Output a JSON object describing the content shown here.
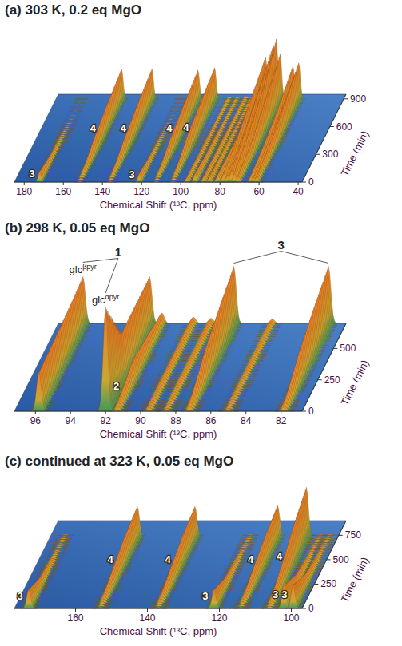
{
  "chart_data": [
    {
      "type": "waterfall",
      "title": "(a) 303 K, 0.2 eq MgO",
      "x_label": "Chemical Shift (¹³C, ppm)",
      "y_label": "Time (min)",
      "xlim": [
        185,
        38
      ],
      "xticks": [
        180,
        160,
        140,
        120,
        100,
        80,
        60,
        40
      ],
      "ylim": [
        0,
        950
      ],
      "yticks": [
        0,
        300,
        600,
        900
      ],
      "zlim": [
        0,
        100
      ],
      "times": [
        0,
        300,
        600,
        900
      ],
      "series": [
        {
          "name": "3",
          "x": 172,
          "values": [
            18,
            6,
            2,
            0
          ]
        },
        {
          "name": "4",
          "x": 151.5,
          "values": [
            2,
            25,
            40,
            50
          ]
        },
        {
          "name": "4",
          "x": 136,
          "values": [
            2,
            25,
            40,
            50
          ]
        },
        {
          "name": "3",
          "x": 121,
          "values": [
            15,
            5,
            2,
            0
          ]
        },
        {
          "name": "4",
          "x": 112.5,
          "values": [
            2,
            25,
            38,
            48
          ]
        },
        {
          "name": "4",
          "x": 104,
          "values": [
            2,
            28,
            42,
            52
          ]
        },
        {
          "x": 96.5,
          "values": [
            8,
            6,
            5,
            4
          ]
        },
        {
          "x": 92.5,
          "values": [
            15,
            8,
            5,
            3
          ]
        },
        {
          "x": 88,
          "values": [
            10,
            8,
            6,
            5
          ]
        },
        {
          "x": 85,
          "values": [
            10,
            6,
            4,
            3
          ]
        },
        {
          "x": 81,
          "values": [
            12,
            10,
            8,
            6
          ]
        },
        {
          "x": 78,
          "values": [
            15,
            30,
            50,
            70
          ]
        },
        {
          "x": 76,
          "values": [
            12,
            25,
            45,
            60
          ]
        },
        {
          "x": 74,
          "values": [
            20,
            40,
            65,
            90
          ]
        },
        {
          "x": 72.5,
          "values": [
            15,
            35,
            60,
            100
          ]
        },
        {
          "x": 70.5,
          "values": [
            10,
            25,
            50,
            75
          ]
        },
        {
          "x": 64,
          "values": [
            10,
            20,
            35,
            55
          ]
        },
        {
          "x": 62.5,
          "values": [
            8,
            18,
            30,
            45
          ]
        },
        {
          "x": 61,
          "values": [
            10,
            20,
            40,
            60
          ]
        }
      ]
    },
    {
      "type": "waterfall",
      "title": "(b) 298 K, 0.05 eq MgO",
      "x_label": "Chemical Shift (¹³C, ppm)",
      "y_label": "Time (min)",
      "xlim": [
        97.2,
        80.8
      ],
      "xticks": [
        96,
        94,
        92,
        90,
        88,
        86,
        84,
        82
      ],
      "ylim": [
        0,
        700
      ],
      "yticks": [
        0,
        250,
        500
      ],
      "zlim": [
        0,
        100
      ],
      "times": [
        0,
        250,
        500,
        700
      ],
      "series": [
        {
          "x": 95.8,
          "values": [
            38,
            40,
            42,
            45
          ]
        },
        {
          "x": 92.0,
          "values": [
            100,
            45,
            45,
            45
          ]
        },
        {
          "name": "2",
          "x": 91.3,
          "values": [
            5,
            20,
            15,
            10
          ]
        },
        {
          "x": 89.5,
          "values": [
            4,
            6,
            6,
            6
          ]
        },
        {
          "x": 88.5,
          "values": [
            3,
            5,
            5,
            5
          ]
        },
        {
          "x": 87.2,
          "values": [
            5,
            30,
            45,
            55
          ]
        },
        {
          "x": 85,
          "values": [
            3,
            4,
            4,
            4
          ]
        },
        {
          "x": 81.8,
          "values": [
            5,
            30,
            45,
            55
          ]
        }
      ],
      "annotations": [
        {
          "text": "1",
          "targets": [
            0,
            1
          ],
          "sub": [
            {
              "base": "glc",
              "sup": "βpyr"
            },
            {
              "base": "glc",
              "sup": "αpyr"
            }
          ]
        },
        {
          "text": "3",
          "targets": [
            5,
            7
          ]
        }
      ]
    },
    {
      "type": "waterfall",
      "title": "(c) continued at 323 K, 0.05 eq MgO",
      "x_label": "Chemical Shift (¹³C, ppm)",
      "y_label": "Time (min)",
      "xlim": [
        177,
        97
      ],
      "xticks": [
        160,
        140,
        120,
        100
      ],
      "ylim": [
        0,
        900
      ],
      "yticks": [
        0,
        250,
        500,
        750
      ],
      "zlim": [
        0,
        100
      ],
      "times": [
        0,
        250,
        500,
        750
      ],
      "series": [
        {
          "name": "3",
          "x": 173,
          "values": [
            40,
            15,
            5,
            2
          ]
        },
        {
          "name": "4",
          "x": 153,
          "values": [
            3,
            30,
            50,
            60
          ]
        },
        {
          "name": "4",
          "x": 137,
          "values": [
            3,
            30,
            50,
            60
          ]
        },
        {
          "name": "3",
          "x": 121.5,
          "values": [
            40,
            15,
            5,
            2
          ]
        },
        {
          "name": "4",
          "x": 114,
          "values": [
            3,
            30,
            50,
            62
          ]
        },
        {
          "name": "4",
          "x": 106,
          "values": [
            5,
            40,
            75,
            100
          ]
        },
        {
          "name": "3",
          "x": 102,
          "values": [
            50,
            20,
            6,
            2
          ]
        },
        {
          "name": "3",
          "x": 99.5,
          "values": [
            50,
            20,
            6,
            2
          ]
        }
      ]
    }
  ]
}
